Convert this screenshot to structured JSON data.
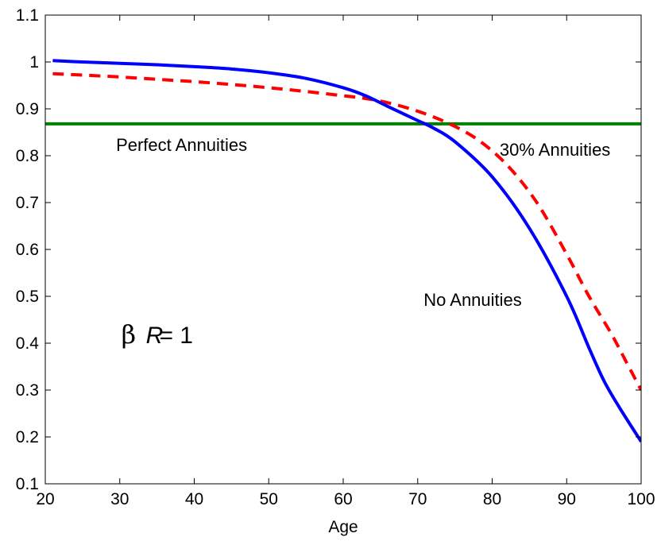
{
  "chart_data": {
    "type": "line",
    "title": "",
    "xlabel": "Age",
    "ylabel": "",
    "xlim": [
      20,
      100
    ],
    "ylim": [
      0.1,
      1.1
    ],
    "xticks": [
      20,
      30,
      40,
      50,
      60,
      70,
      80,
      90,
      100
    ],
    "yticks": [
      0.1,
      0.2,
      0.3,
      0.4,
      0.5,
      0.6,
      0.7,
      0.8,
      0.9,
      1,
      1.1
    ],
    "ytick_labels": [
      "0.1",
      "0.2",
      "0.3",
      "0.4",
      "0.5",
      "0.6",
      "0.7",
      "0.8",
      "0.9",
      "1",
      "1.1"
    ],
    "grid": false,
    "series": [
      {
        "key": "none",
        "color": "#0000ff",
        "style": "solid",
        "x": [
          21,
          25,
          30,
          35,
          40,
          45,
          50,
          55,
          60,
          63,
          66,
          70,
          72,
          75,
          80,
          85,
          90,
          93,
          95,
          97,
          100
        ],
        "y": [
          1.003,
          1.0,
          0.997,
          0.994,
          0.99,
          0.985,
          0.977,
          0.965,
          0.945,
          0.928,
          0.905,
          0.875,
          0.86,
          0.83,
          0.755,
          0.645,
          0.5,
          0.39,
          0.32,
          0.265,
          0.19
        ]
      },
      {
        "key": "partial",
        "color": "#ff0000",
        "style": "dashed",
        "x": [
          21,
          25,
          30,
          35,
          40,
          45,
          50,
          55,
          60,
          63,
          66,
          70,
          74,
          78,
          82,
          86,
          90,
          93,
          96,
          98,
          100
        ],
        "y": [
          0.975,
          0.972,
          0.968,
          0.963,
          0.958,
          0.952,
          0.945,
          0.937,
          0.928,
          0.922,
          0.913,
          0.895,
          0.87,
          0.835,
          0.78,
          0.7,
          0.59,
          0.5,
          0.42,
          0.36,
          0.3
        ]
      },
      {
        "key": "perfect",
        "color": "#007f00",
        "style": "solid",
        "x": [
          20,
          100
        ],
        "y": [
          0.868,
          0.868
        ]
      }
    ],
    "annotations": [
      {
        "text": "Perfect Annuities",
        "x": 29.5,
        "y": 0.81
      },
      {
        "text": "30% Annuities",
        "x": 81,
        "y": 0.8
      },
      {
        "text": "No Annuities",
        "x": 70.8,
        "y": 0.48
      },
      {
        "text": "β",
        "x": 30.2,
        "y": 0.4,
        "kind": "symbol"
      },
      {
        "text": "R",
        "x": 33.5,
        "y": 0.4,
        "kind": "italic"
      },
      {
        "text": "= 1",
        "x": 35.3,
        "y": 0.4,
        "kind": "plain"
      }
    ]
  }
}
